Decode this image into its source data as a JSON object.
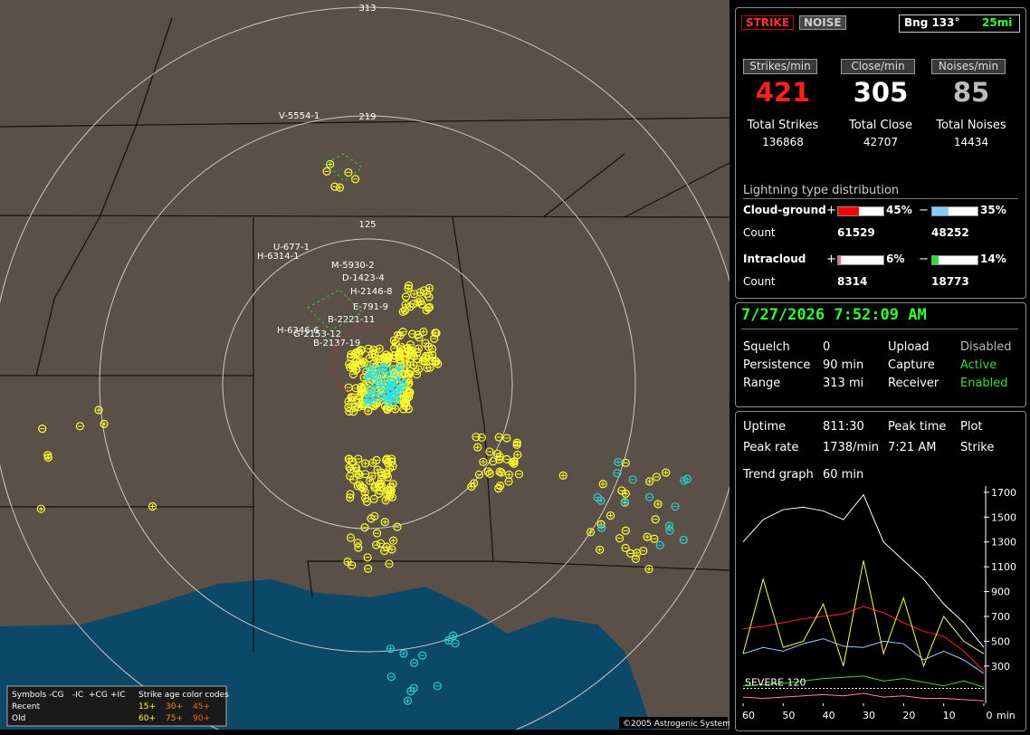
{
  "map": {
    "ring_labels": [
      "313",
      "219",
      "125"
    ],
    "storm_labels": [
      "V-5554-1",
      "U-677-1",
      "H-6314-1",
      "M-5930-2",
      "D-1423-4",
      "H-2146-8",
      "E-791-9",
      "B-2221-11",
      "H-6346-6",
      "G-2153-12",
      "B-2137-19"
    ],
    "legend": {
      "symbols": "Symbols",
      "cols": [
        "-CG",
        "-IC",
        "+CG",
        "+IC"
      ],
      "age_title": "Strike age color codes",
      "rows": [
        "Recent",
        "Old"
      ],
      "ages": [
        "15+",
        "30+",
        "45+",
        "60+",
        "75+",
        "90+"
      ]
    },
    "copyright": "©2005 Astrogenic Systems"
  },
  "header": {
    "strike": "STRIKE",
    "noise": "NOISE",
    "bearing": "Bng 133°",
    "distance": "25mi"
  },
  "rates": {
    "labels": [
      "Strikes/min",
      "Close/min",
      "Noises/min"
    ],
    "values": [
      421,
      305,
      85
    ],
    "total_labels": [
      "Total Strikes",
      "Total Close",
      "Total Noises"
    ],
    "totals": [
      136868,
      42707,
      14434
    ]
  },
  "distribution": {
    "title": "Lightning type distribution",
    "cg": "Cloud-ground",
    "ic": "Intracloud",
    "count": "Count",
    "plus": "+",
    "minus": "−",
    "cg_pos": {
      "value": 45,
      "label": "45%"
    },
    "cg_neg": {
      "value": 35,
      "label": "35%"
    },
    "ic_pos": {
      "value": 6,
      "label": "6%"
    },
    "ic_neg": {
      "value": 14,
      "label": "14%"
    },
    "counts": [
      61529,
      48252,
      8314,
      18773
    ]
  },
  "datetime": "7/27/2026 7:52:09 AM",
  "settings": {
    "rows": [
      [
        "Squelch",
        "0",
        "Upload",
        "Disabled"
      ],
      [
        "Persistence",
        "90 min",
        "Capture",
        "Active"
      ],
      [
        "Range",
        "313 mi",
        "Receiver",
        "Enabled"
      ]
    ]
  },
  "stats": {
    "rows": [
      [
        "Uptime",
        "811:30",
        "Peak time",
        "Plot"
      ],
      [
        "Peak rate",
        "1738/min",
        "7:21 AM",
        "Strike"
      ]
    ],
    "trend_label": "Trend graph",
    "trend_value": "60 min"
  },
  "trend_graph": {
    "type": "line",
    "x": [
      60,
      55,
      50,
      45,
      40,
      35,
      30,
      25,
      20,
      15,
      10,
      5,
      0
    ],
    "xlim": [
      60,
      0
    ],
    "xticks": [
      60,
      50,
      40,
      30,
      20,
      10,
      0
    ],
    "x_unit": "min",
    "ylim": [
      0,
      1750
    ],
    "yticks": [
      300,
      500,
      700,
      900,
      1100,
      1300,
      1500,
      1700
    ],
    "severe_label": "SEVERE 120",
    "severe_value": 120,
    "series": [
      {
        "color": "#ffffff",
        "values": [
          1300,
          1480,
          1560,
          1580,
          1550,
          1480,
          1680,
          1300,
          1150,
          1000,
          800,
          650,
          450
        ]
      },
      {
        "color": "#ff2020",
        "values": [
          600,
          620,
          650,
          680,
          700,
          720,
          780,
          730,
          650,
          580,
          540,
          420,
          260
        ]
      },
      {
        "color": "#ffff40",
        "values": [
          400,
          1000,
          450,
          500,
          800,
          300,
          1150,
          400,
          850,
          300,
          700,
          500,
          400
        ]
      },
      {
        "color": "#9ecbff",
        "values": [
          400,
          450,
          420,
          480,
          520,
          460,
          450,
          500,
          480,
          350,
          420,
          350,
          240
        ]
      },
      {
        "color": "#30e030",
        "values": [
          140,
          150,
          160,
          180,
          200,
          210,
          220,
          180,
          200,
          170,
          140,
          180,
          130
        ]
      },
      {
        "color": "#ff80c0",
        "values": [
          50,
          40,
          50,
          60,
          70,
          60,
          80,
          50,
          60,
          40,
          40,
          30,
          20
        ]
      }
    ]
  }
}
